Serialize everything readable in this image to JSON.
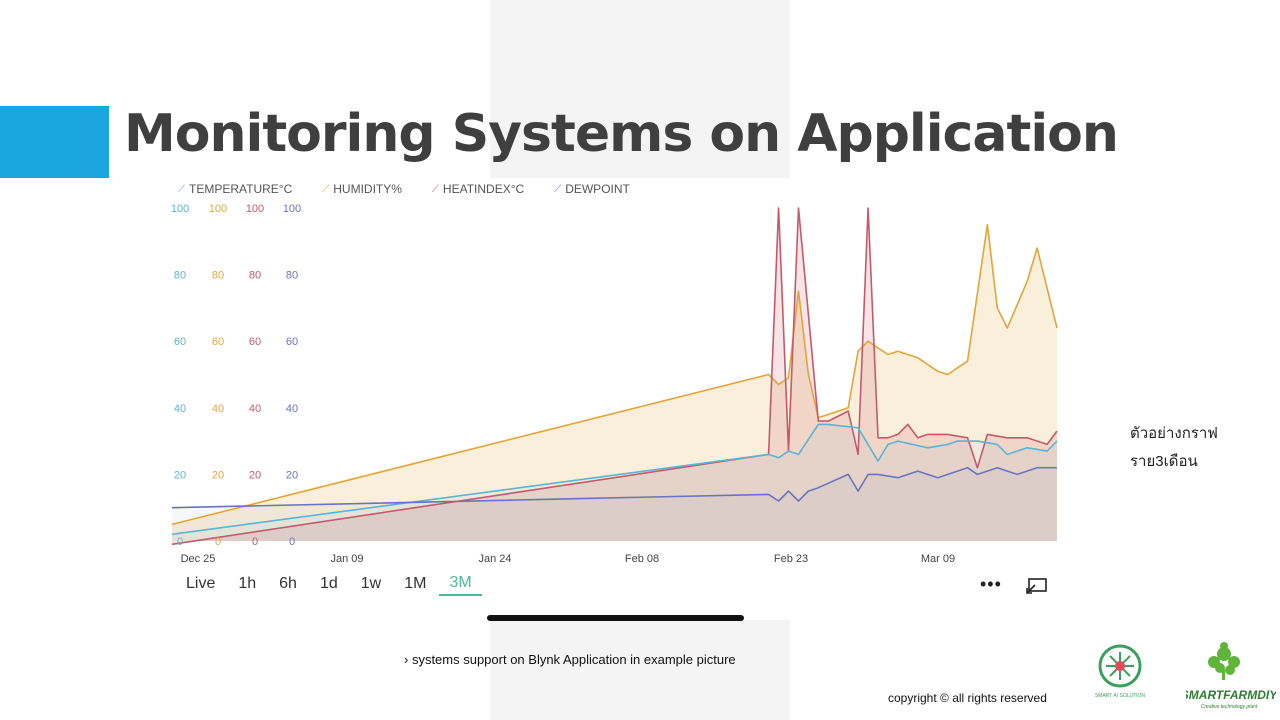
{
  "slide": {
    "title": "Monitoring Systems on Application",
    "side_note_line1": "ตัวอย่างกราฟ",
    "side_note_line2": "ราย3เดือน",
    "caption": "› systems support on Blynk Application in example picture",
    "copyright": "copyright © all rights reserved",
    "accent_color": "#1ba6e0"
  },
  "app": {
    "time_ranges": [
      "Live",
      "1h",
      "6h",
      "1d",
      "1w",
      "1M",
      "3M"
    ],
    "selected_range": "3M",
    "more_icon": "more-dots-icon",
    "expand_icon": "expand-icon"
  },
  "logos": {
    "logo1_text": "SMART AI SOLUTION",
    "logo2_text": "SMARTFARMDIY",
    "logo2_tagline": "Creative technology plant"
  },
  "chart_data": {
    "type": "line",
    "title": "",
    "xlabel": "",
    "ylabel": "",
    "ylim": [
      0,
      100
    ],
    "x_ticks": [
      "Dec 25",
      "Jan 09",
      "Jan 24",
      "Feb 08",
      "Feb 23",
      "Mar 09"
    ],
    "y_ticks": [
      0,
      20,
      40,
      60,
      80,
      100
    ],
    "legend_position": "top",
    "grid": false,
    "series": [
      {
        "name": "TEMPERATURE°C",
        "color": "#5bb4d4",
        "x": [
          0,
          60,
          61,
          62,
          63,
          65,
          66,
          69,
          71,
          72,
          73,
          76,
          78,
          79,
          81,
          83,
          84,
          86,
          88,
          89
        ],
        "y": [
          2,
          26,
          25,
          27,
          26,
          35,
          35,
          34,
          24,
          29,
          30,
          28,
          29,
          30,
          30,
          29,
          26,
          28,
          27,
          30
        ]
      },
      {
        "name": "HUMIDITY%",
        "color": "#e0a63a",
        "x": [
          0,
          60,
          61,
          62,
          63,
          64,
          65,
          68,
          69,
          70,
          71,
          72,
          73,
          75,
          77,
          78,
          80,
          82,
          83,
          84,
          86,
          87,
          89
        ],
        "y": [
          5,
          50,
          47,
          49,
          75,
          50,
          37,
          40,
          57,
          60,
          58,
          56,
          57,
          55,
          51,
          50,
          54,
          95,
          70,
          64,
          78,
          88,
          64
        ]
      },
      {
        "name": "HEATINDEX°C",
        "color": "#c45a6c",
        "x": [
          0,
          60,
          61,
          62,
          63,
          65,
          66,
          68,
          69,
          70,
          71,
          72,
          73,
          74,
          75,
          76,
          78,
          80,
          81,
          82,
          84,
          86,
          88,
          89
        ],
        "y": [
          -1,
          26,
          100,
          27,
          100,
          36,
          36,
          39,
          26,
          100,
          31,
          31,
          32,
          35,
          31,
          32,
          32,
          31,
          22,
          32,
          31,
          31,
          29,
          33
        ]
      },
      {
        "name": "DEWPOINT",
        "color": "#6a74be",
        "x": [
          0,
          60,
          61,
          62,
          63,
          64,
          65,
          68,
          69,
          70,
          71,
          73,
          75,
          77,
          80,
          81,
          83,
          85,
          87,
          89
        ],
        "y": [
          10,
          14,
          12,
          15,
          12,
          15,
          16,
          20,
          15,
          20,
          20,
          19,
          21,
          19,
          22,
          20,
          22,
          20,
          22,
          22
        ]
      }
    ]
  }
}
